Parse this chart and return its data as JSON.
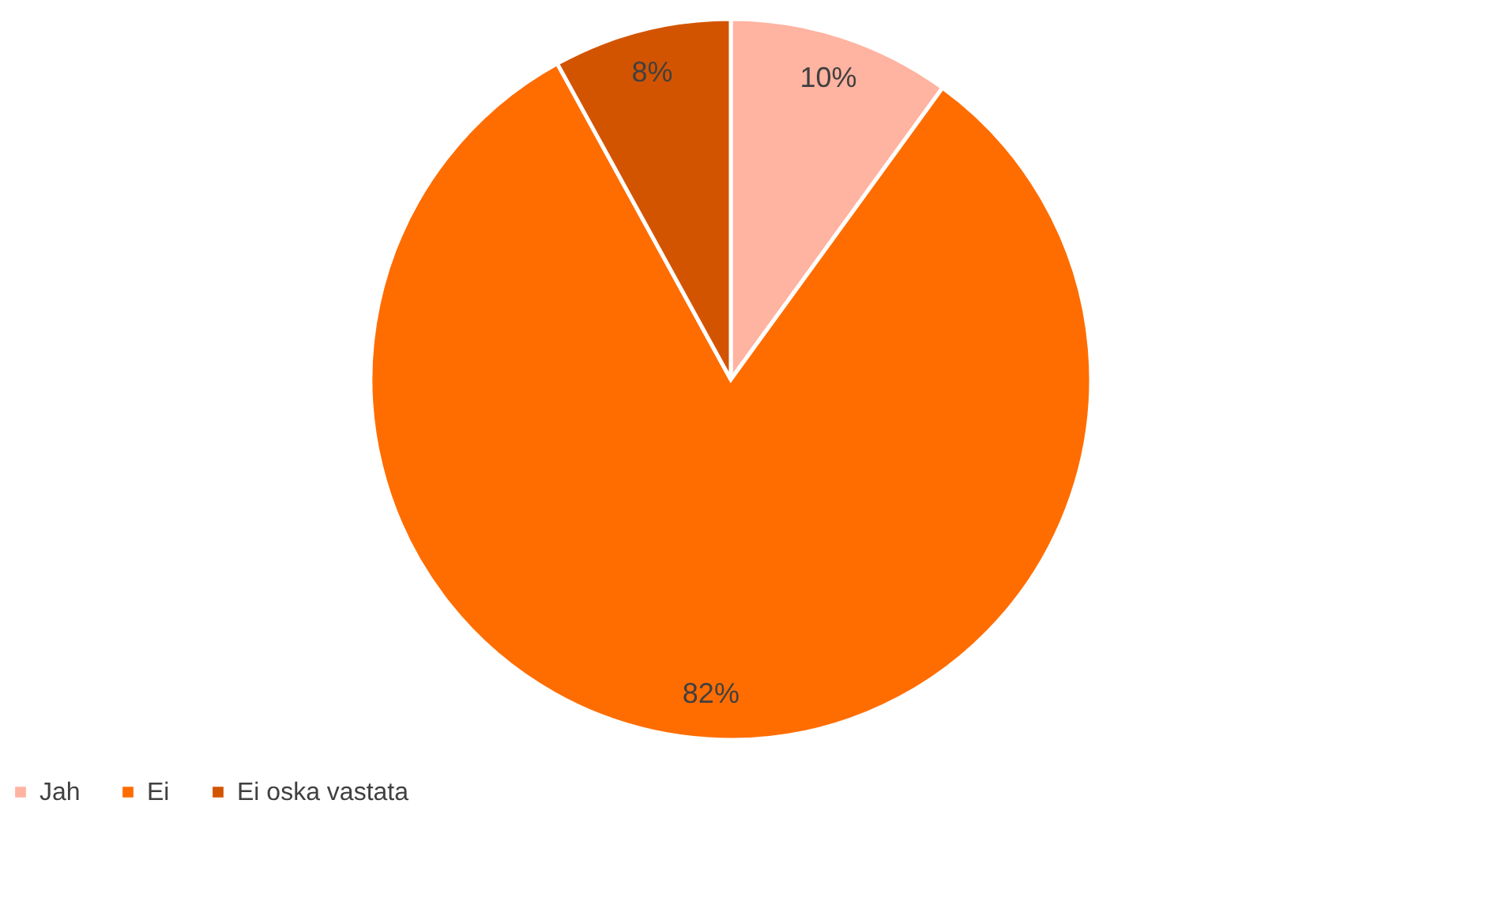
{
  "chart_data": {
    "type": "pie",
    "categories": [
      "Jah",
      "Ei",
      "Ei oska vastata"
    ],
    "values": [
      10,
      82,
      8
    ],
    "colors": [
      "#ffb3a1",
      "#ff6d00",
      "#d35400"
    ],
    "value_labels": [
      "10%",
      "82%",
      "8%"
    ],
    "legend": "bottom"
  }
}
